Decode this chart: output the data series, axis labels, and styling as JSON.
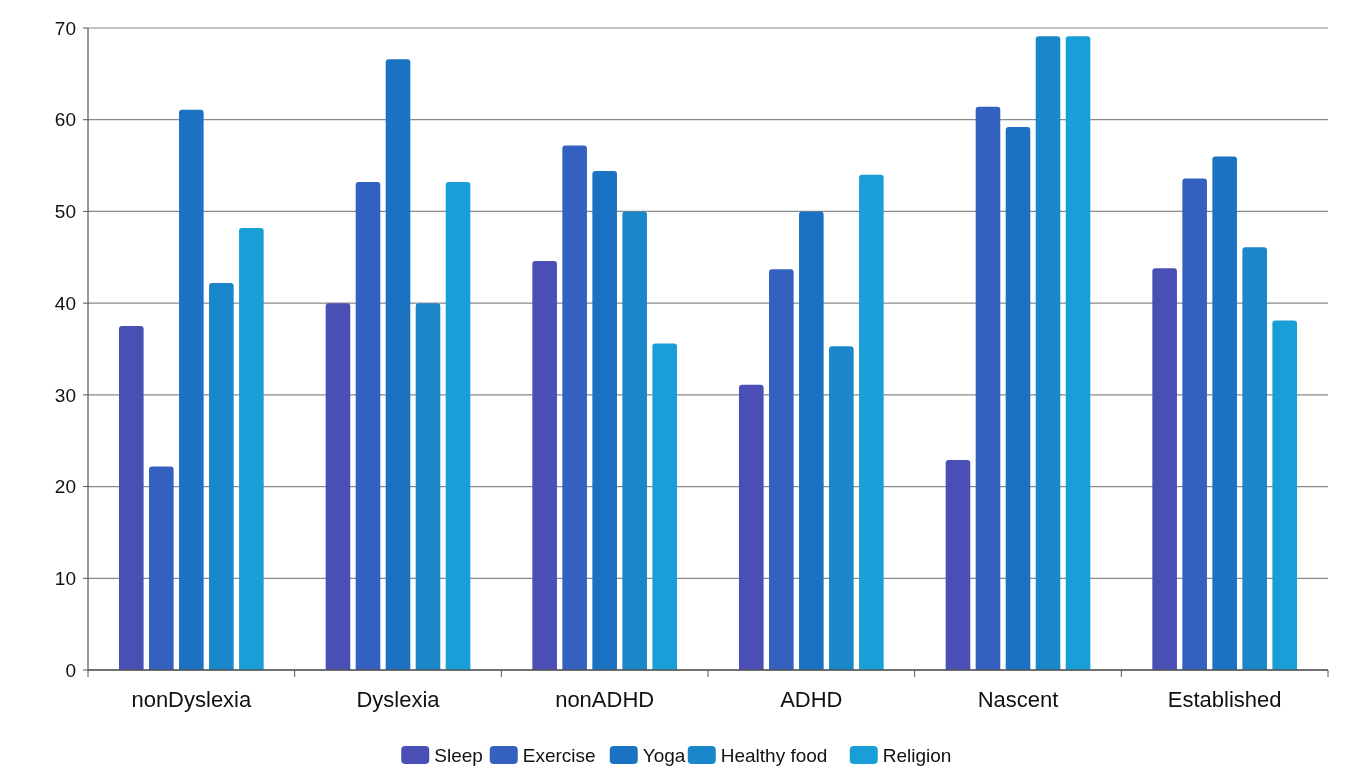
{
  "chart_data": {
    "type": "bar",
    "categories": [
      "nonDyslexia",
      "Dyslexia",
      "nonADHD",
      "ADHD",
      "Nascent",
      "Established"
    ],
    "series": [
      {
        "name": "Sleep",
        "color": "#4a4fb5",
        "values": [
          37.5,
          40,
          44.6,
          31.1,
          22.9,
          43.8
        ]
      },
      {
        "name": "Exercise",
        "color": "#3461c0",
        "values": [
          22.2,
          53.2,
          57.2,
          43.7,
          61.4,
          53.6
        ]
      },
      {
        "name": "Yoga",
        "color": "#1c72c2",
        "values": [
          61.1,
          66.6,
          54.4,
          50,
          59.2,
          56
        ]
      },
      {
        "name": "Healthy food",
        "color": "#1a87cb",
        "values": [
          42.2,
          40,
          50,
          35.3,
          69.1,
          46.1
        ]
      },
      {
        "name": "Religion",
        "color": "#1a9ed8",
        "values": [
          48.2,
          53.2,
          35.6,
          54,
          69.1,
          38.1
        ]
      }
    ],
    "ylim": [
      0,
      70
    ],
    "yticks": [
      0,
      10,
      20,
      30,
      40,
      50,
      60,
      70
    ],
    "grid": "y",
    "legend": "bottom"
  }
}
